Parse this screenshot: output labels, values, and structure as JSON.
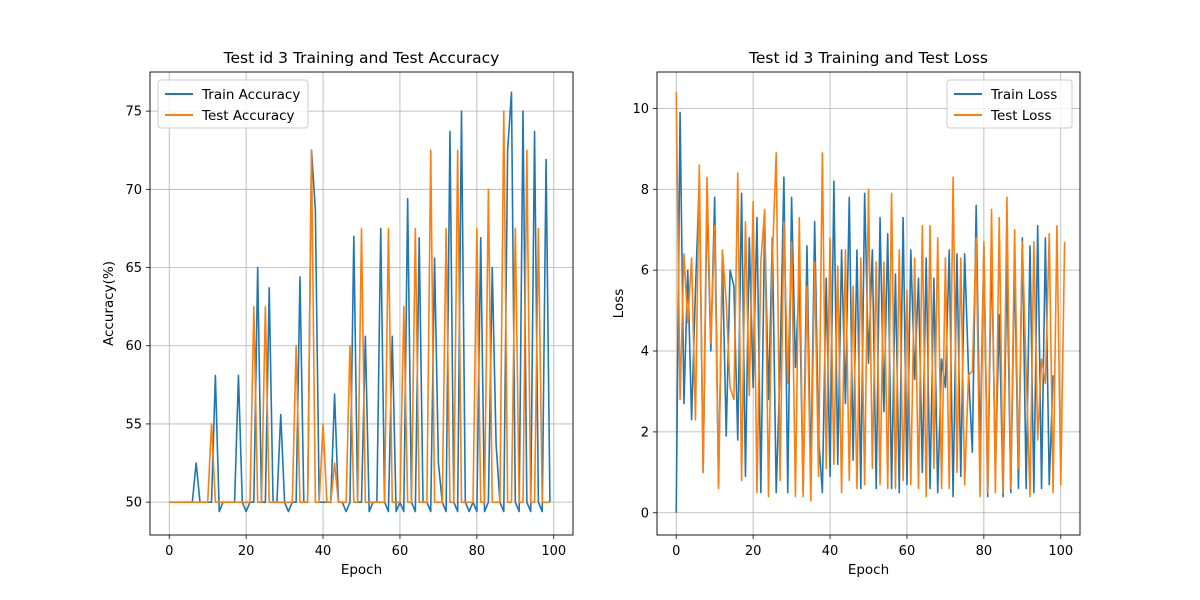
{
  "chart_data": [
    {
      "type": "line",
      "title": "Test id 3 Training and Test Accuracy",
      "xlabel": "Epoch",
      "ylabel": "Accuracy(%)",
      "xlim": [
        -5,
        105
      ],
      "ylim": [
        47.9,
        77.5
      ],
      "xticks": [
        0,
        20,
        40,
        60,
        80,
        100
      ],
      "yticks": [
        50,
        55,
        60,
        65,
        70,
        75
      ],
      "grid": true,
      "legend": "upper left",
      "series": [
        {
          "name": "Train Accuracy",
          "color": "#1f77b4",
          "x_start": 0,
          "values": [
            50,
            50,
            50,
            50,
            50,
            50,
            50,
            52.5,
            50,
            50,
            50,
            50,
            58.1,
            49.4,
            50,
            50,
            50,
            50,
            58.1,
            50,
            49.4,
            50,
            50,
            65,
            50,
            50,
            63.7,
            50,
            50,
            55.6,
            50,
            49.4,
            50,
            50,
            64.4,
            50,
            50,
            72.5,
            68.7,
            50,
            50,
            50,
            50,
            56.9,
            50,
            50,
            49.4,
            50,
            67,
            50,
            50,
            60.6,
            49.4,
            50,
            50,
            67.5,
            50,
            49.4,
            60.6,
            49.4,
            50,
            49.4,
            69.4,
            50,
            49.4,
            66.9,
            50,
            50,
            49.4,
            65.6,
            52.5,
            50,
            49.4,
            73.7,
            50,
            49.4,
            75,
            50,
            49.4,
            50,
            49.4,
            66.9,
            49.4,
            50,
            65,
            53.7,
            50,
            49.4,
            72.5,
            76.2,
            50,
            49.4,
            75,
            50,
            49.4,
            73.7,
            50,
            49.4,
            71.9,
            50
          ]
        },
        {
          "name": "Test Accuracy",
          "color": "#ff7f0e",
          "x_start": 0,
          "values": [
            50,
            50,
            50,
            50,
            50,
            50,
            50,
            50,
            50,
            50,
            50,
            55,
            50,
            50,
            50,
            50,
            50,
            50,
            50,
            50,
            50,
            50,
            62.5,
            50,
            50,
            62.5,
            50,
            50,
            50,
            50,
            50,
            50,
            50,
            60,
            50,
            50,
            50,
            72.5,
            50,
            50,
            55,
            50,
            50,
            52.5,
            50,
            50,
            50,
            60,
            50,
            50,
            67.5,
            50,
            50,
            50,
            50,
            50,
            50,
            67.5,
            50,
            50,
            50,
            62.5,
            50,
            50,
            67.5,
            50,
            50,
            50,
            72.5,
            50,
            50,
            50,
            67.5,
            50,
            50,
            72.5,
            50,
            50,
            50,
            50,
            67.5,
            50,
            50,
            70,
            50,
            50,
            50,
            75,
            50,
            50,
            67.5,
            50,
            50,
            72.5,
            50,
            50,
            67.5,
            50,
            50,
            50
          ]
        }
      ]
    },
    {
      "type": "line",
      "title": "Test id 3 Training and Test Loss",
      "xlabel": "Epoch",
      "ylabel": "Loss",
      "xlim": [
        -5,
        105
      ],
      "ylim": [
        -0.55,
        10.9
      ],
      "xticks": [
        0,
        20,
        40,
        60,
        80,
        100
      ],
      "yticks": [
        0,
        2,
        4,
        6,
        8,
        10
      ],
      "grid": true,
      "legend": "upper right",
      "series": [
        {
          "name": "Train Loss",
          "color": "#1f77b4",
          "x_start": 0,
          "values": [
            0,
            9.9,
            2.7,
            6,
            2.3,
            5.5,
            8.2,
            1,
            7.8,
            4,
            7.8,
            0.7,
            6.3,
            1.9,
            6,
            5.6,
            1.8,
            7.9,
            0.9,
            6.8,
            3.1,
            7.3,
            0.5,
            7.2,
            2.8,
            6.8,
            0.5,
            3.6,
            8.3,
            0.5,
            7.8,
            3.6,
            5.8,
            0.5,
            6.6,
            0.9,
            7.2,
            1.9,
            0.5,
            5.8,
            0.9,
            8.2,
            1.2,
            6.5,
            2.7,
            7.8,
            1.3,
            6.5,
            0.6,
            7.9,
            3.7,
            6.5,
            0.6,
            7.3,
            2.5,
            6.9,
            0.6,
            5.9,
            0.5,
            7.3,
            0.7,
            6.5,
            3.3,
            5.8,
            1,
            6.3,
            0.6,
            5.8,
            0.5,
            3.8,
            3.1,
            6.5,
            0.4,
            6.4,
            0.9,
            6.4,
            3.5,
            1.5,
            7.6,
            1.5,
            6.6,
            0.4,
            6.6,
            1,
            4.9,
            0.4,
            6.2,
            0.5,
            6.2,
            0.6,
            6.8,
            0.6,
            6.6,
            0.5,
            7.1,
            0.6,
            6.8,
            0.7,
            3.4
          ]
        },
        {
          "name": "Test Loss",
          "color": "#ff7f0e",
          "x_start": 0,
          "values": [
            10.4,
            2.8,
            6.4,
            4.7,
            6.3,
            2.3,
            8.6,
            1,
            8.3,
            4.2,
            7.1,
            0.6,
            6.5,
            5.2,
            3.1,
            2.8,
            8.4,
            0.8,
            7.2,
            2.9,
            7.7,
            0.5,
            6.2,
            7.5,
            0.4,
            6.3,
            8.9,
            0.8,
            7.2,
            3.2,
            6.7,
            0.4,
            7.3,
            0.4,
            5.6,
            0.3,
            6.2,
            0.9,
            8.9,
            1.1,
            6.8,
            1.2,
            6.1,
            0.5,
            6.5,
            0.8,
            5.6,
            0.6,
            6.3,
            0.7,
            8,
            1.1,
            6.2,
            0.7,
            6.2,
            0.6,
            7.9,
            0.6,
            6.5,
            0.8,
            5.5,
            0.7,
            6.3,
            0.6,
            7.1,
            0.4,
            7.1,
            1.1,
            6.8,
            0.6,
            6.3,
            0.6,
            8.3,
            1,
            6.3,
            0.7,
            3.4,
            3.5,
            6.8,
            0.4,
            6.7,
            0.5,
            7.5,
            0.5,
            7.3,
            0.5,
            7.8,
            0.6,
            7,
            1.1,
            6.7,
            3.5,
            0.4,
            6.7,
            1.8,
            3.8,
            3.2,
            6.9,
            0.5,
            7.1,
            0.7,
            6.7
          ]
        }
      ]
    }
  ]
}
